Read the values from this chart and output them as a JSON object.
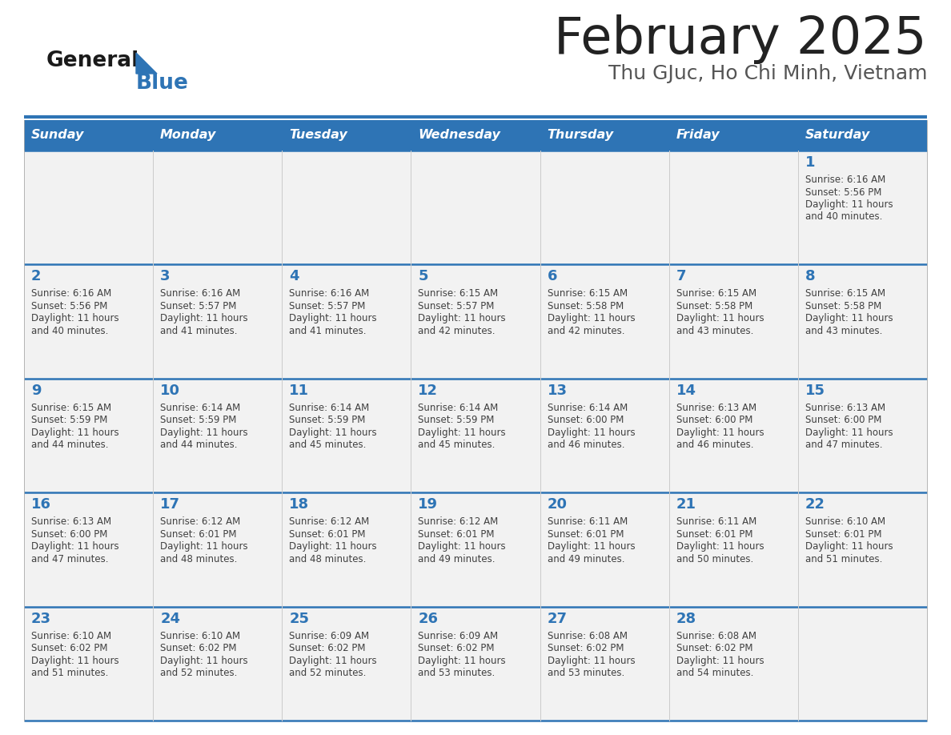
{
  "title": "February 2025",
  "subtitle": "Thu GJuc, Ho Chi Minh, Vietnam",
  "days_of_week": [
    "Sunday",
    "Monday",
    "Tuesday",
    "Wednesday",
    "Thursday",
    "Friday",
    "Saturday"
  ],
  "header_bg": "#2E74B5",
  "header_text_color": "#FFFFFF",
  "cell_bg": "#F2F2F2",
  "day_num_color": "#2E74B5",
  "text_color": "#404040",
  "divider_color": "#2E74B5",
  "title_color": "#222222",
  "subtitle_color": "#555555",
  "logo_general_color": "#1a1a1a",
  "logo_blue_color": "#2E74B5",
  "calendar_data": [
    [
      {
        "day": null,
        "sunrise": null,
        "sunset": null,
        "daylight": null
      },
      {
        "day": null,
        "sunrise": null,
        "sunset": null,
        "daylight": null
      },
      {
        "day": null,
        "sunrise": null,
        "sunset": null,
        "daylight": null
      },
      {
        "day": null,
        "sunrise": null,
        "sunset": null,
        "daylight": null
      },
      {
        "day": null,
        "sunrise": null,
        "sunset": null,
        "daylight": null
      },
      {
        "day": null,
        "sunrise": null,
        "sunset": null,
        "daylight": null
      },
      {
        "day": 1,
        "sunrise": "6:16 AM",
        "sunset": "5:56 PM",
        "daylight": "11 hours and 40 minutes."
      }
    ],
    [
      {
        "day": 2,
        "sunrise": "6:16 AM",
        "sunset": "5:56 PM",
        "daylight": "11 hours and 40 minutes."
      },
      {
        "day": 3,
        "sunrise": "6:16 AM",
        "sunset": "5:57 PM",
        "daylight": "11 hours and 41 minutes."
      },
      {
        "day": 4,
        "sunrise": "6:16 AM",
        "sunset": "5:57 PM",
        "daylight": "11 hours and 41 minutes."
      },
      {
        "day": 5,
        "sunrise": "6:15 AM",
        "sunset": "5:57 PM",
        "daylight": "11 hours and 42 minutes."
      },
      {
        "day": 6,
        "sunrise": "6:15 AM",
        "sunset": "5:58 PM",
        "daylight": "11 hours and 42 minutes."
      },
      {
        "day": 7,
        "sunrise": "6:15 AM",
        "sunset": "5:58 PM",
        "daylight": "11 hours and 43 minutes."
      },
      {
        "day": 8,
        "sunrise": "6:15 AM",
        "sunset": "5:58 PM",
        "daylight": "11 hours and 43 minutes."
      }
    ],
    [
      {
        "day": 9,
        "sunrise": "6:15 AM",
        "sunset": "5:59 PM",
        "daylight": "11 hours and 44 minutes."
      },
      {
        "day": 10,
        "sunrise": "6:14 AM",
        "sunset": "5:59 PM",
        "daylight": "11 hours and 44 minutes."
      },
      {
        "day": 11,
        "sunrise": "6:14 AM",
        "sunset": "5:59 PM",
        "daylight": "11 hours and 45 minutes."
      },
      {
        "day": 12,
        "sunrise": "6:14 AM",
        "sunset": "5:59 PM",
        "daylight": "11 hours and 45 minutes."
      },
      {
        "day": 13,
        "sunrise": "6:14 AM",
        "sunset": "6:00 PM",
        "daylight": "11 hours and 46 minutes."
      },
      {
        "day": 14,
        "sunrise": "6:13 AM",
        "sunset": "6:00 PM",
        "daylight": "11 hours and 46 minutes."
      },
      {
        "day": 15,
        "sunrise": "6:13 AM",
        "sunset": "6:00 PM",
        "daylight": "11 hours and 47 minutes."
      }
    ],
    [
      {
        "day": 16,
        "sunrise": "6:13 AM",
        "sunset": "6:00 PM",
        "daylight": "11 hours and 47 minutes."
      },
      {
        "day": 17,
        "sunrise": "6:12 AM",
        "sunset": "6:01 PM",
        "daylight": "11 hours and 48 minutes."
      },
      {
        "day": 18,
        "sunrise": "6:12 AM",
        "sunset": "6:01 PM",
        "daylight": "11 hours and 48 minutes."
      },
      {
        "day": 19,
        "sunrise": "6:12 AM",
        "sunset": "6:01 PM",
        "daylight": "11 hours and 49 minutes."
      },
      {
        "day": 20,
        "sunrise": "6:11 AM",
        "sunset": "6:01 PM",
        "daylight": "11 hours and 49 minutes."
      },
      {
        "day": 21,
        "sunrise": "6:11 AM",
        "sunset": "6:01 PM",
        "daylight": "11 hours and 50 minutes."
      },
      {
        "day": 22,
        "sunrise": "6:10 AM",
        "sunset": "6:01 PM",
        "daylight": "11 hours and 51 minutes."
      }
    ],
    [
      {
        "day": 23,
        "sunrise": "6:10 AM",
        "sunset": "6:02 PM",
        "daylight": "11 hours and 51 minutes."
      },
      {
        "day": 24,
        "sunrise": "6:10 AM",
        "sunset": "6:02 PM",
        "daylight": "11 hours and 52 minutes."
      },
      {
        "day": 25,
        "sunrise": "6:09 AM",
        "sunset": "6:02 PM",
        "daylight": "11 hours and 52 minutes."
      },
      {
        "day": 26,
        "sunrise": "6:09 AM",
        "sunset": "6:02 PM",
        "daylight": "11 hours and 53 minutes."
      },
      {
        "day": 27,
        "sunrise": "6:08 AM",
        "sunset": "6:02 PM",
        "daylight": "11 hours and 53 minutes."
      },
      {
        "day": 28,
        "sunrise": "6:08 AM",
        "sunset": "6:02 PM",
        "daylight": "11 hours and 54 minutes."
      },
      {
        "day": null,
        "sunrise": null,
        "sunset": null,
        "daylight": null
      }
    ]
  ]
}
